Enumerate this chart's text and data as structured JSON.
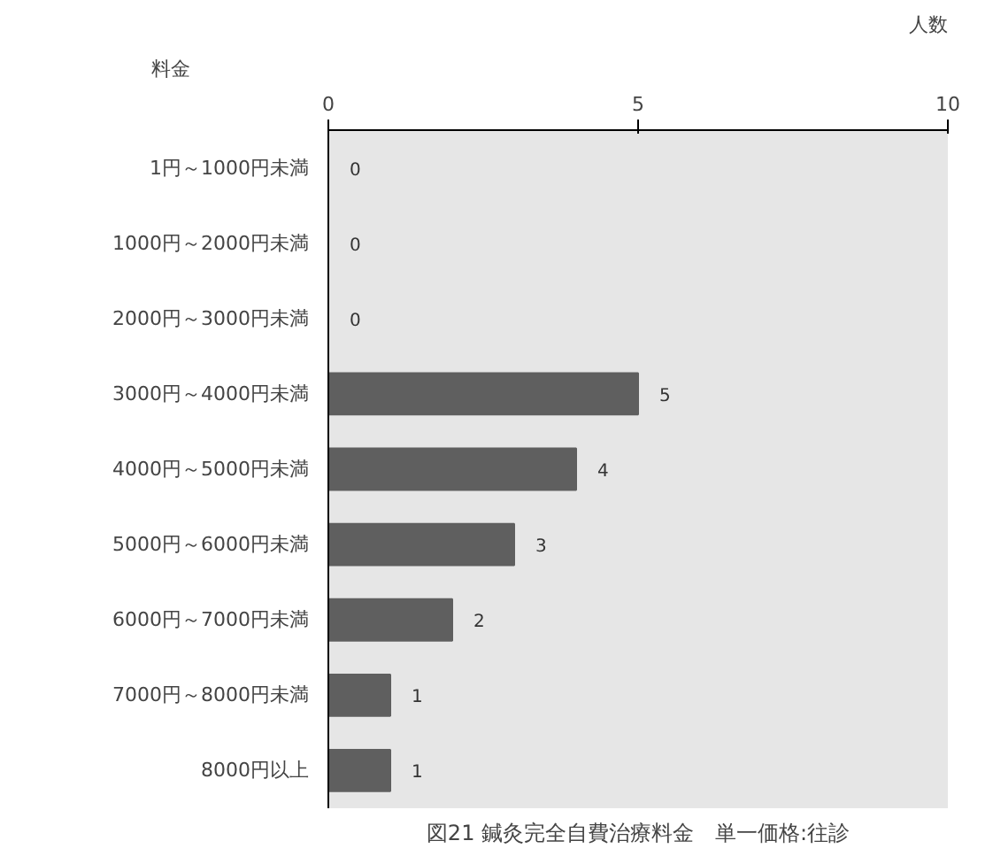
{
  "chart_data": {
    "type": "bar",
    "orientation": "horizontal",
    "title": "図21 鍼灸完全自費治療料金　単一価格:往診",
    "xlabel": "人数",
    "ylabel": "料金",
    "categories": [
      "1円～1000円未満",
      "1000円～2000円未満",
      "2000円～3000円未満",
      "3000円～4000円未満",
      "4000円～5000円未満",
      "5000円～6000円未満",
      "6000円～7000円未満",
      "7000円～8000円未満",
      "8000円以上"
    ],
    "values": [
      0,
      0,
      0,
      5,
      4,
      3,
      2,
      1,
      1
    ],
    "color": "#5f5f5f",
    "xlim": [
      0,
      10
    ],
    "xticks": [
      0,
      5,
      10
    ],
    "data_labels": true
  }
}
